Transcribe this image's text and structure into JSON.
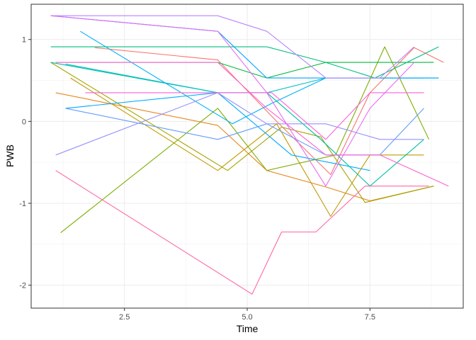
{
  "chart_data": {
    "type": "line",
    "xlabel": "Time",
    "ylabel": "PWB",
    "xlim": [
      0.6,
      9.4
    ],
    "ylim": [
      -2.28,
      1.43
    ],
    "x_ticks": [
      2.5,
      5.0,
      7.5
    ],
    "x_tick_labels": [
      "2.5",
      "5.0",
      "7.5"
    ],
    "y_ticks": [
      -2,
      -1,
      0,
      1
    ],
    "y_tick_labels": [
      "-2",
      "-1",
      "0",
      "1"
    ],
    "grid": true,
    "legend": "none",
    "series": [
      {
        "color": "#F8766D",
        "x": [
          1.9,
          4.4,
          5.6,
          6.7,
          7.5,
          8.4,
          9.0
        ],
        "y": [
          0.9,
          0.75,
          0.0,
          -0.65,
          0.35,
          0.9,
          0.72
        ]
      },
      {
        "color": "#E7861B",
        "x": [
          1.1,
          4.4,
          5.4,
          6.6,
          7.5,
          8.8
        ],
        "y": [
          0.35,
          -0.05,
          -0.6,
          -0.8,
          -0.97,
          -0.79
        ]
      },
      {
        "color": "#C09B00",
        "x": [
          1.4,
          4.4,
          5.6,
          6.7,
          7.5,
          8.6
        ],
        "y": [
          0.53,
          -0.6,
          -0.03,
          -1.16,
          -0.41,
          -0.41
        ]
      },
      {
        "color": "#A3A500",
        "x": [
          1.0,
          4.6,
          5.7,
          6.5,
          7.4,
          8.8
        ],
        "y": [
          0.72,
          -0.6,
          -0.07,
          -0.19,
          -0.99,
          -0.79
        ]
      },
      {
        "color": "#7CAE00",
        "x": [
          1.2,
          4.4,
          5.4,
          6.8,
          7.8,
          8.7
        ],
        "y": [
          -1.36,
          0.16,
          -0.6,
          -0.41,
          0.91,
          -0.22
        ]
      },
      {
        "color": "#00A9FF",
        "x": [
          1.3,
          4.4,
          5.9,
          7.5
        ],
        "y": [
          0.16,
          0.35,
          -0.41,
          -0.6
        ]
      },
      {
        "color": "#00BA38",
        "x": [
          1.1,
          4.4,
          5.4,
          6.6,
          7.7,
          8.8
        ],
        "y": [
          0.72,
          0.72,
          0.53,
          0.72,
          0.72,
          0.72
        ]
      },
      {
        "color": "#00BF7D",
        "x": [
          1.0,
          5.4,
          6.6,
          7.6,
          8.9
        ],
        "y": [
          0.91,
          0.91,
          0.72,
          0.53,
          0.91
        ]
      },
      {
        "color": "#00C1A3",
        "x": [
          1.0,
          4.4,
          5.4,
          6.5,
          7.5,
          8.6
        ],
        "y": [
          0.72,
          0.35,
          0.35,
          -0.22,
          -0.79,
          -0.22
        ]
      },
      {
        "color": "#00BFC4",
        "x": [
          1.3,
          4.4,
          5.4,
          6.6,
          8.9
        ],
        "y": [
          0.7,
          0.35,
          0.35,
          0.53,
          0.53
        ]
      },
      {
        "color": "#00B0F6",
        "x": [
          1.6,
          4.7,
          5.5,
          6.6,
          7.6,
          8.6
        ],
        "y": [
          1.1,
          -0.03,
          0.22,
          0.53,
          0.53,
          0.53
        ]
      },
      {
        "color": "#00A5FF",
        "x": [
          1.0,
          4.4,
          5.4,
          6.6,
          7.6,
          8.9
        ],
        "y": [
          1.29,
          1.1,
          0.53,
          0.53,
          0.53,
          0.53
        ]
      },
      {
        "color": "#619CFF",
        "x": [
          1.3,
          4.4,
          5.4,
          6.6,
          7.7,
          8.6
        ],
        "y": [
          0.16,
          -0.22,
          -0.03,
          -0.41,
          -0.41,
          0.16
        ]
      },
      {
        "color": "#9590FF",
        "x": [
          1.1,
          4.4,
          5.4,
          6.6,
          7.7,
          8.6
        ],
        "y": [
          -0.41,
          0.35,
          -0.03,
          -0.03,
          -0.22,
          -0.22
        ]
      },
      {
        "color": "#B983FF",
        "x": [
          1.0,
          4.4,
          5.4,
          6.6,
          7.7,
          8.4
        ],
        "y": [
          1.29,
          1.29,
          1.1,
          0.53,
          0.53,
          0.91
        ]
      },
      {
        "color": "#E76BF3",
        "x": [
          1.0,
          4.4,
          5.4,
          6.6,
          7.5,
          8.4
        ],
        "y": [
          1.29,
          1.1,
          0.35,
          -0.79,
          0.16,
          0.72
        ]
      },
      {
        "color": "#FA62DB",
        "x": [
          1.7,
          4.4,
          5.5,
          6.6,
          7.5,
          8.6
        ],
        "y": [
          0.35,
          0.35,
          0.35,
          -0.22,
          0.35,
          0.35
        ]
      },
      {
        "color": "#FD61D1",
        "x": [
          1.1,
          4.4,
          5.4,
          6.6,
          7.7,
          9.1
        ],
        "y": [
          0.72,
          0.72,
          0.16,
          -0.41,
          -0.41,
          -0.79
        ]
      },
      {
        "color": "#FF67A4",
        "x": [
          1.1,
          5.1,
          5.7,
          6.4,
          7.4,
          8.7
        ],
        "y": [
          -0.6,
          -2.11,
          -1.35,
          -1.35,
          -0.79,
          -0.79
        ]
      }
    ]
  }
}
